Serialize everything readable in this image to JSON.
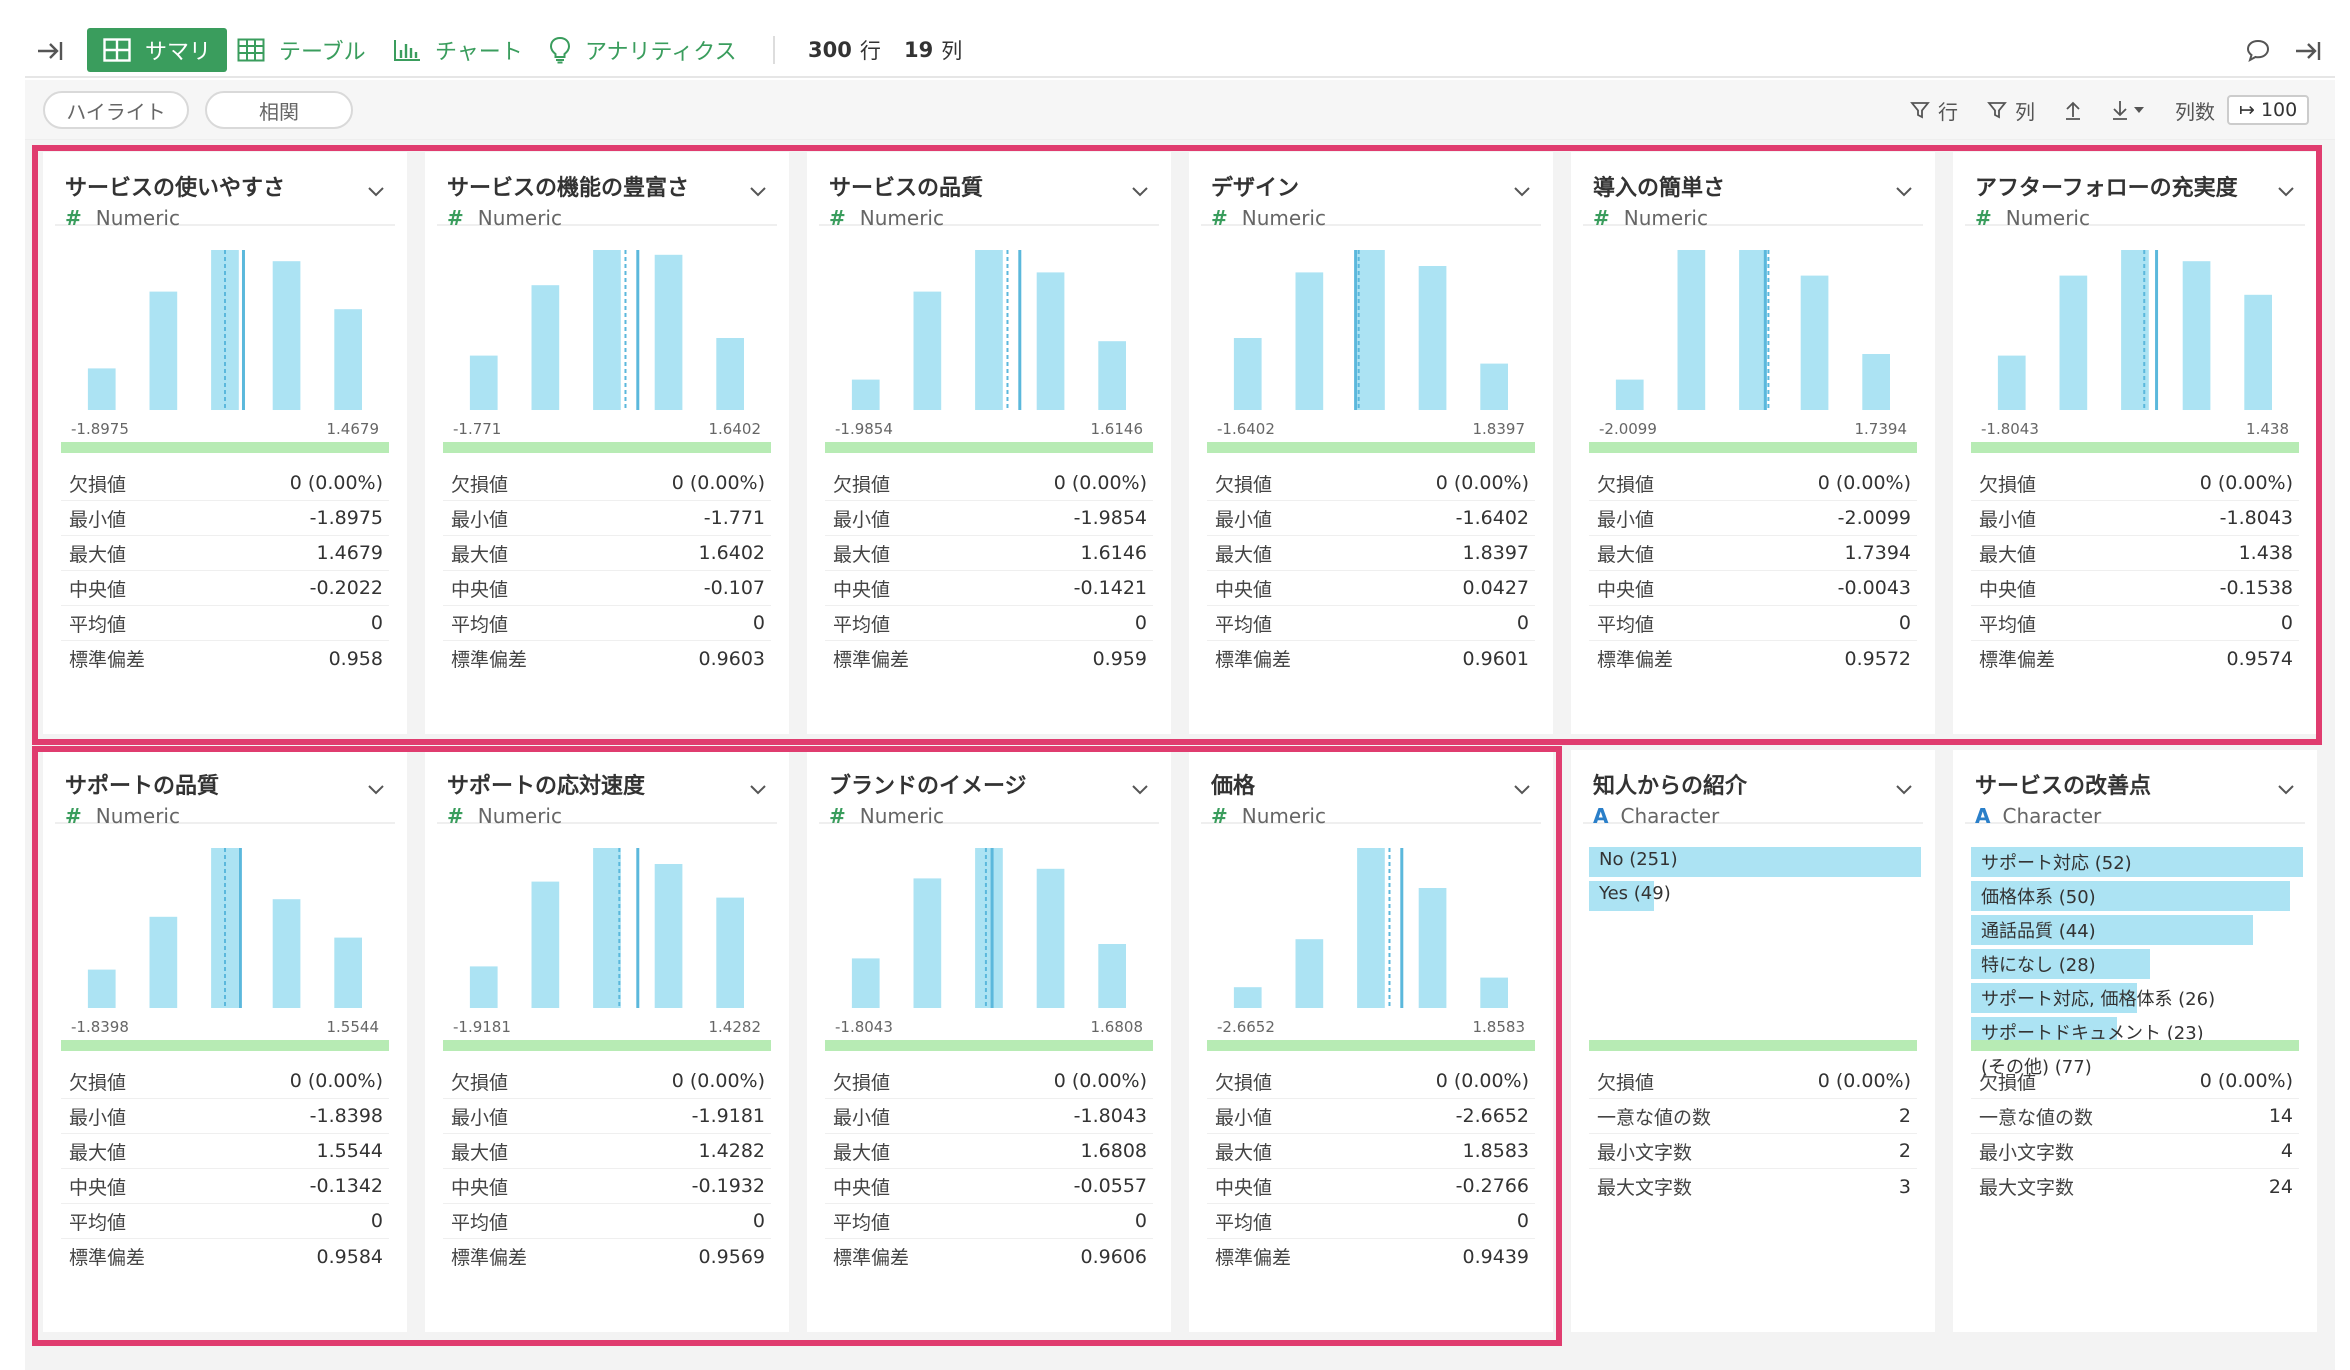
{
  "toolbar": {
    "tabs": [
      {
        "label": "サマリ",
        "icon": "summary-grid-icon",
        "active": true
      },
      {
        "label": "テーブル",
        "icon": "table-icon",
        "active": false
      },
      {
        "label": "チャート",
        "icon": "bar-chart-icon",
        "active": false
      },
      {
        "label": "アナリティクス",
        "icon": "lightbulb-icon",
        "active": false
      }
    ],
    "rows_count": "300",
    "rows_unit": "行",
    "cols_count": "19",
    "cols_unit": "列"
  },
  "subbar": {
    "highlight_label": "ハイライト",
    "correlation_label": "相関",
    "row_filter_label": "行",
    "col_filter_label": "列",
    "col_count_label": "列数",
    "col_count_value": "100"
  },
  "colors": {
    "accent_green": "#3a9d5d",
    "bar_blue": "#ace3f3",
    "median_line": "#5bb8dc",
    "highlight_frame": "#e03c6f",
    "range_green": "#b7ebb4"
  },
  "numeric_cards": [
    {
      "title": "サービスの使いやすさ",
      "type": "Numeric",
      "bars": [
        0.26,
        0.74,
        1.0,
        0.93,
        0.63
      ],
      "median_pos": 0.5,
      "mean_pos": 0.56,
      "min": "-1.8975",
      "max": "1.4679",
      "stats": [
        [
          "欠損値",
          "0 (0.00%)"
        ],
        [
          "最小値",
          "-1.8975"
        ],
        [
          "最大値",
          "1.4679"
        ],
        [
          "中央値",
          "-0.2022"
        ],
        [
          "平均値",
          "0"
        ],
        [
          "標準偏差",
          "0.958"
        ]
      ]
    },
    {
      "title": "サービスの機能の豊富さ",
      "type": "Numeric",
      "bars": [
        0.34,
        0.78,
        1.0,
        0.97,
        0.45
      ],
      "median_pos": 0.56,
      "mean_pos": 0.6,
      "min": "-1.771",
      "max": "1.6402",
      "stats": [
        [
          "欠損値",
          "0 (0.00%)"
        ],
        [
          "最小値",
          "-1.771"
        ],
        [
          "最大値",
          "1.6402"
        ],
        [
          "中央値",
          "-0.107"
        ],
        [
          "平均値",
          "0"
        ],
        [
          "標準偏差",
          "0.9603"
        ]
      ]
    },
    {
      "title": "サービスの品質",
      "type": "Numeric",
      "bars": [
        0.19,
        0.74,
        1.0,
        0.86,
        0.43
      ],
      "median_pos": 0.56,
      "mean_pos": 0.6,
      "min": "-1.9854",
      "max": "1.6146",
      "stats": [
        [
          "欠損値",
          "0 (0.00%)"
        ],
        [
          "最小値",
          "-1.9854"
        ],
        [
          "最大値",
          "1.6146"
        ],
        [
          "中央値",
          "-0.1421"
        ],
        [
          "平均値",
          "0"
        ],
        [
          "標準偏差",
          "0.959"
        ]
      ]
    },
    {
      "title": "デザイン",
      "type": "Numeric",
      "bars": [
        0.45,
        0.86,
        1.0,
        0.9,
        0.29
      ],
      "median_pos": 0.46,
      "mean_pos": 0.45,
      "min": "-1.6402",
      "max": "1.8397",
      "stats": [
        [
          "欠損値",
          "0 (0.00%)"
        ],
        [
          "最小値",
          "-1.6402"
        ],
        [
          "最大値",
          "1.8397"
        ],
        [
          "中央値",
          "0.0427"
        ],
        [
          "平均値",
          "0"
        ],
        [
          "標準偏差",
          "0.9601"
        ]
      ]
    },
    {
      "title": "導入の簡単さ",
      "type": "Numeric",
      "bars": [
        0.19,
        1.0,
        1.0,
        0.84,
        0.35
      ],
      "median_pos": 0.55,
      "mean_pos": 0.54,
      "min": "-2.0099",
      "max": "1.7394",
      "stats": [
        [
          "欠損値",
          "0 (0.00%)"
        ],
        [
          "最小値",
          "-2.0099"
        ],
        [
          "最大値",
          "1.7394"
        ],
        [
          "中央値",
          "-0.0043"
        ],
        [
          "平均値",
          "0"
        ],
        [
          "標準偏差",
          "0.9572"
        ]
      ]
    },
    {
      "title": "アフターフォローの充実度",
      "type": "Numeric",
      "bars": [
        0.34,
        0.84,
        1.0,
        0.93,
        0.72
      ],
      "median_pos": 0.53,
      "mean_pos": 0.57,
      "min": "-1.8043",
      "max": "1.438",
      "stats": [
        [
          "欠損値",
          "0 (0.00%)"
        ],
        [
          "最小値",
          "-1.8043"
        ],
        [
          "最大値",
          "1.438"
        ],
        [
          "中央値",
          "-0.1538"
        ],
        [
          "平均値",
          "0"
        ],
        [
          "標準偏差",
          "0.9574"
        ]
      ]
    },
    {
      "title": "サポートの品質",
      "type": "Numeric",
      "bars": [
        0.24,
        0.57,
        1.0,
        0.68,
        0.44
      ],
      "median_pos": 0.5,
      "mean_pos": 0.55,
      "min": "-1.8398",
      "max": "1.5544",
      "stats": [
        [
          "欠損値",
          "0 (0.00%)"
        ],
        [
          "最小値",
          "-1.8398"
        ],
        [
          "最大値",
          "1.5544"
        ],
        [
          "中央値",
          "-0.1342"
        ],
        [
          "平均値",
          "0"
        ],
        [
          "標準偏差",
          "0.9584"
        ]
      ]
    },
    {
      "title": "サポートの応対速度",
      "type": "Numeric",
      "bars": [
        0.26,
        0.79,
        1.0,
        0.9,
        0.69
      ],
      "median_pos": 0.54,
      "mean_pos": 0.6,
      "min": "-1.9181",
      "max": "1.4282",
      "stats": [
        [
          "欠損値",
          "0 (0.00%)"
        ],
        [
          "最小値",
          "-1.9181"
        ],
        [
          "最大値",
          "1.4282"
        ],
        [
          "中央値",
          "-0.1932"
        ],
        [
          "平均値",
          "0"
        ],
        [
          "標準偏差",
          "0.9569"
        ]
      ]
    },
    {
      "title": "ブランドのイメージ",
      "type": "Numeric",
      "bars": [
        0.31,
        0.81,
        1.0,
        0.87,
        0.4
      ],
      "median_pos": 0.49,
      "mean_pos": 0.51,
      "min": "-1.8043",
      "max": "1.6808",
      "stats": [
        [
          "欠損値",
          "0 (0.00%)"
        ],
        [
          "最小値",
          "-1.8043"
        ],
        [
          "最大値",
          "1.6808"
        ],
        [
          "中央値",
          "-0.0557"
        ],
        [
          "平均値",
          "0"
        ],
        [
          "標準偏差",
          "0.9606"
        ]
      ]
    },
    {
      "title": "価格",
      "type": "Numeric",
      "bars": [
        0.13,
        0.43,
        1.0,
        0.75,
        0.19
      ],
      "median_pos": 0.56,
      "mean_pos": 0.6,
      "min": "-2.6652",
      "max": "1.8583",
      "stats": [
        [
          "欠損値",
          "0 (0.00%)"
        ],
        [
          "最小値",
          "-2.6652"
        ],
        [
          "最大値",
          "1.8583"
        ],
        [
          "中央値",
          "-0.2766"
        ],
        [
          "平均値",
          "0"
        ],
        [
          "標準偏差",
          "0.9439"
        ]
      ]
    }
  ],
  "character_cards": [
    {
      "title": "知人からの紹介",
      "type": "Character",
      "items": [
        {
          "label": "No (251)",
          "share": 1.0
        },
        {
          "label": "Yes (49)",
          "share": 0.195
        }
      ],
      "stats": [
        [
          "欠損値",
          "0 (0.00%)"
        ],
        [
          "一意な値の数",
          "2"
        ],
        [
          "最小文字数",
          "2"
        ],
        [
          "最大文字数",
          "3"
        ]
      ]
    },
    {
      "title": "サービスの改善点",
      "type": "Character",
      "items": [
        {
          "label": "サポート対応 (52)",
          "share": 1.0
        },
        {
          "label": "価格体系 (50)",
          "share": 0.96
        },
        {
          "label": "通話品質 (44)",
          "share": 0.85
        },
        {
          "label": "特になし (28)",
          "share": 0.54
        },
        {
          "label": "サポート対応, 価格体系 (26)",
          "share": 0.5
        },
        {
          "label": "サポートドキュメント (23)",
          "share": 0.44
        },
        {
          "label": "(その他) (77)",
          "share": 0
        }
      ],
      "stats": [
        [
          "欠損値",
          "0 (0.00%)"
        ],
        [
          "一意な値の数",
          "14"
        ],
        [
          "最小文字数",
          "4"
        ],
        [
          "最大文字数",
          "24"
        ]
      ]
    }
  ]
}
